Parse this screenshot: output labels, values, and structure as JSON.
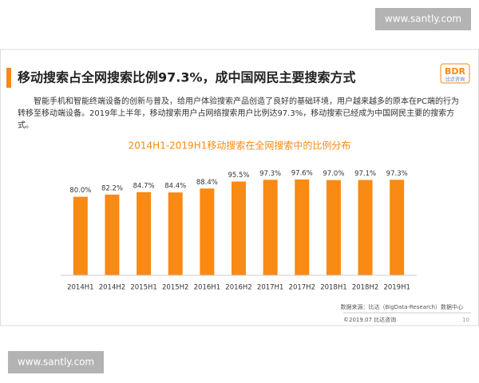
{
  "watermark_top": "www.santly.com",
  "watermark_bottom": "www.santly.com",
  "slide": {
    "title": "移动搜索占全网搜索比例97.3%，成中国网民主要搜索方式",
    "logo": "BDR",
    "logo_sub": "比达咨询",
    "paragraph": "智能手机和智能终端设备的创新与普及，给用户体验搜索产品创造了良好的基础环境，用户越来越多的原本在PC端的行为转移至移动端设备。2019年上半年，移动搜索用户占网络搜索用户比例达97.3%，移动搜索已经成为中国网民主要的搜索方式。",
    "source": "数据来源：比达（BigData-Research）数据中心",
    "copyright": "©2019.07 比达咨询",
    "page_number": "10"
  },
  "chart_data": {
    "type": "bar",
    "title": "2014H1-2019H1移动搜索在全网搜索中的比例分布",
    "categories": [
      "2014H1",
      "2014H2",
      "2015H1",
      "2015H2",
      "2016H1",
      "2016H2",
      "2017H1",
      "2017H2",
      "2018H1",
      "2018H2",
      "2019H1"
    ],
    "values": [
      80.0,
      82.2,
      84.7,
      84.4,
      88.4,
      95.5,
      97.3,
      97.6,
      97.0,
      97.1,
      97.3
    ],
    "value_labels": [
      "80.0%",
      "82.2%",
      "84.7%",
      "84.4%",
      "88.4%",
      "95.5%",
      "97.3%",
      "97.6%",
      "97.0%",
      "97.1%",
      "97.3%"
    ],
    "color": "#f98a13",
    "ylim": [
      0,
      100
    ]
  }
}
